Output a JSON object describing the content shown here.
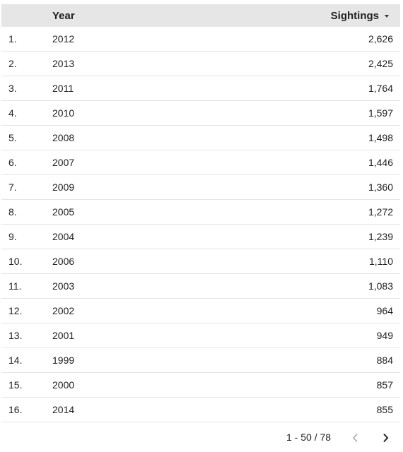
{
  "table": {
    "columns": {
      "year": "Year",
      "sightings": "Sightings"
    },
    "sort": {
      "column": "Sightings",
      "direction": "descending",
      "icon": "sort-descending-icon"
    },
    "rows": [
      {
        "index": "1.",
        "year": "2012",
        "sightings": "2,626"
      },
      {
        "index": "2.",
        "year": "2013",
        "sightings": "2,425"
      },
      {
        "index": "3.",
        "year": "2011",
        "sightings": "1,764"
      },
      {
        "index": "4.",
        "year": "2010",
        "sightings": "1,597"
      },
      {
        "index": "5.",
        "year": "2008",
        "sightings": "1,498"
      },
      {
        "index": "6.",
        "year": "2007",
        "sightings": "1,446"
      },
      {
        "index": "7.",
        "year": "2009",
        "sightings": "1,360"
      },
      {
        "index": "8.",
        "year": "2005",
        "sightings": "1,272"
      },
      {
        "index": "9.",
        "year": "2004",
        "sightings": "1,239"
      },
      {
        "index": "10.",
        "year": "2006",
        "sightings": "1,110"
      },
      {
        "index": "11.",
        "year": "2003",
        "sightings": "1,083"
      },
      {
        "index": "12.",
        "year": "2002",
        "sightings": "964"
      },
      {
        "index": "13.",
        "year": "2001",
        "sightings": "949"
      },
      {
        "index": "14.",
        "year": "1999",
        "sightings": "884"
      },
      {
        "index": "15.",
        "year": "2000",
        "sightings": "857"
      },
      {
        "index": "16.",
        "year": "2014",
        "sightings": "855"
      }
    ]
  },
  "pagination": {
    "range": "1 - 50 / 78",
    "prev_icon": "chevron-left-icon",
    "next_icon": "chevron-right-icon"
  },
  "colors": {
    "header_bg": "#e6e6e6",
    "row_border": "#e4e4e4",
    "text": "#222222",
    "disabled_icon": "#a8a8a8"
  }
}
